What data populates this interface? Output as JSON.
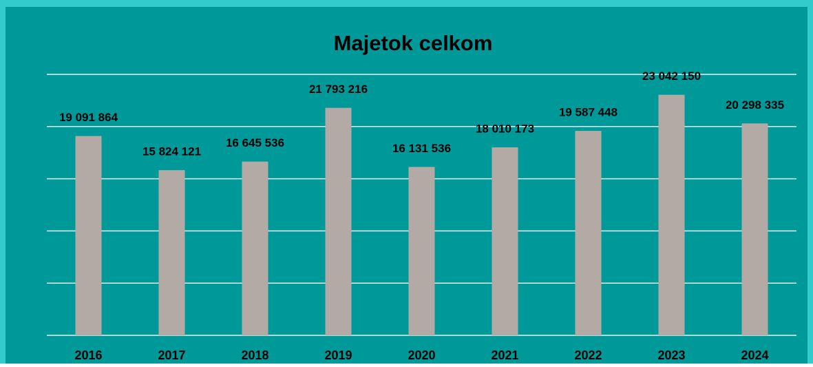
{
  "chart_data": {
    "type": "bar",
    "title": "Majetok celkom",
    "categories": [
      "2016",
      "2017",
      "2018",
      "2019",
      "2020",
      "2021",
      "2022",
      "2023",
      "2024"
    ],
    "values": [
      19091864,
      15824121,
      16645536,
      21793216,
      16131536,
      18010173,
      19587448,
      23042150,
      20298335
    ],
    "value_labels": [
      "19 091 864",
      "15 824 121",
      "16 645 536",
      "21 793 216",
      "16 131 536",
      "18 010 173",
      "19 587 448",
      "23 042 150",
      "20 298 335"
    ],
    "color": "#b3a9a5",
    "ylim": [
      0,
      25000000
    ],
    "yticks": [
      0,
      5000000,
      10000000,
      15000000,
      20000000,
      25000000
    ],
    "grid": true
  }
}
